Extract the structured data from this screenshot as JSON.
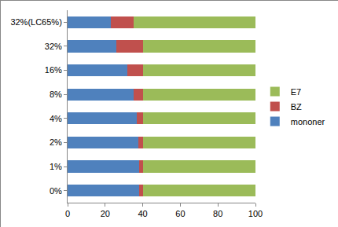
{
  "chart_data": {
    "type": "bar",
    "orientation": "horizontal",
    "stacked": true,
    "categories": [
      "0%",
      "1%",
      "2%",
      "4%",
      "8%",
      "16%",
      "32%",
      "32%(LC65%)"
    ],
    "series": [
      {
        "name": "mononer",
        "color": "#4f81bd",
        "values": [
          38,
          38,
          37.5,
          37,
          35,
          32,
          26,
          23
        ]
      },
      {
        "name": "BZ",
        "color": "#c0504d",
        "values": [
          2,
          2,
          2.5,
          3,
          5,
          8,
          14,
          12
        ]
      },
      {
        "name": "E7",
        "color": "#9bbb59",
        "values": [
          60,
          60,
          60,
          60,
          60,
          60,
          60,
          65
        ]
      }
    ],
    "xlim": [
      0,
      100
    ],
    "xticks": [
      0,
      20,
      40,
      60,
      80,
      100
    ],
    "grid": false,
    "legend": "right"
  }
}
